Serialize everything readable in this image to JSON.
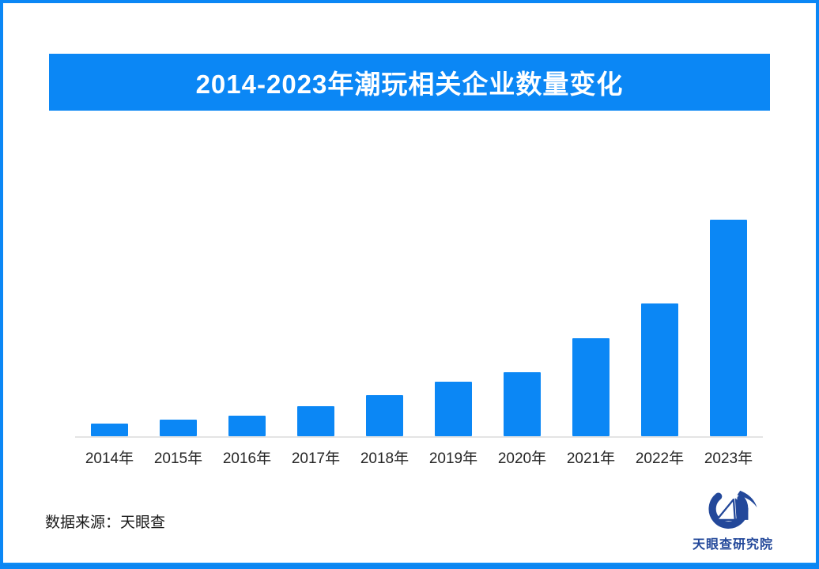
{
  "header": {
    "title": "2014-2023年潮玩相关企业数量变化"
  },
  "footer": {
    "source_label": "数据来源：天眼查",
    "logo_text": "天眼查研究院",
    "logo_icon": "tianyancha-eye-swoosh-icon"
  },
  "colors": {
    "accent_blue": "#0b87f5",
    "frame_border": "#0b87f5",
    "axis_gray": "#e4e4e4",
    "label_text": "#262626",
    "logo_navy": "#23489a"
  },
  "chart_data": {
    "type": "bar",
    "title": "2014-2023年潮玩相关企业数量变化",
    "categories": [
      "2014年",
      "2015年",
      "2016年",
      "2017年",
      "2018年",
      "2019年",
      "2020年",
      "2021年",
      "2022年",
      "2023年"
    ],
    "values": [
      16,
      21,
      26,
      38,
      52,
      69,
      81,
      124,
      168,
      274
    ],
    "values_note": "chart shows no numeric axis or data labels; values are relative bar heights (px) estimated from pixels, 2023 = max",
    "bar_color": "#0b87f5",
    "xlabel": "",
    "ylabel": "",
    "legend": "none",
    "grid": false,
    "baseline_axis": "light gray horizontal line under bars"
  }
}
